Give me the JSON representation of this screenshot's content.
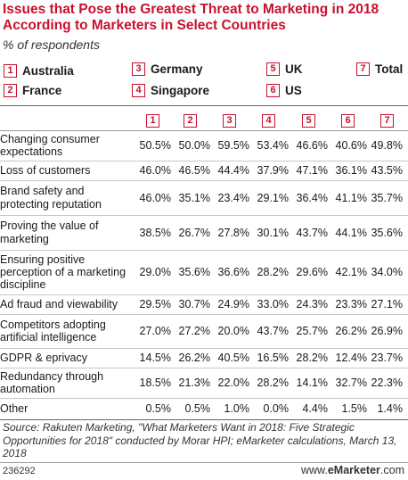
{
  "chart_data": {
    "type": "table",
    "title": "Issues that Pose the Greatest Threat to Marketing in 2018 According to Marketers in Select Countries",
    "subtitle": "% of respondents",
    "legend": [
      {
        "key": "1",
        "name": "Australia"
      },
      {
        "key": "2",
        "name": "France"
      },
      {
        "key": "3",
        "name": "Germany"
      },
      {
        "key": "4",
        "name": "Singapore"
      },
      {
        "key": "5",
        "name": "UK"
      },
      {
        "key": "6",
        "name": "US"
      },
      {
        "key": "7",
        "name": "Total"
      }
    ],
    "columns": [
      "1",
      "2",
      "3",
      "4",
      "5",
      "6",
      "7"
    ],
    "rows": [
      {
        "label": "Changing consumer expectations",
        "values": [
          "50.5%",
          "50.0%",
          "59.5%",
          "53.4%",
          "46.6%",
          "40.6%",
          "49.8%"
        ]
      },
      {
        "label": "Loss of customers",
        "values": [
          "46.0%",
          "46.5%",
          "44.4%",
          "37.9%",
          "47.1%",
          "36.1%",
          "43.5%"
        ]
      },
      {
        "label": "Brand safety and protecting reputation",
        "values": [
          "46.0%",
          "35.1%",
          "23.4%",
          "29.1%",
          "36.4%",
          "41.1%",
          "35.7%"
        ]
      },
      {
        "label": "Proving the value of marketing",
        "values": [
          "38.5%",
          "26.7%",
          "27.8%",
          "30.1%",
          "43.7%",
          "44.1%",
          "35.6%"
        ]
      },
      {
        "label": "Ensuring positive perception of a marketing discipline",
        "values": [
          "29.0%",
          "35.6%",
          "36.6%",
          "28.2%",
          "29.6%",
          "42.1%",
          "34.0%"
        ]
      },
      {
        "label": "Ad fraud and viewability",
        "values": [
          "29.5%",
          "30.7%",
          "24.9%",
          "33.0%",
          "24.3%",
          "23.3%",
          "27.1%"
        ]
      },
      {
        "label": "Competitors adopting artificial intelligence",
        "values": [
          "27.0%",
          "27.2%",
          "20.0%",
          "43.7%",
          "25.7%",
          "26.2%",
          "26.9%"
        ]
      },
      {
        "label": "GDPR & eprivacy",
        "values": [
          "14.5%",
          "26.2%",
          "40.5%",
          "16.5%",
          "28.2%",
          "12.4%",
          "23.7%"
        ]
      },
      {
        "label": "Redundancy through automation",
        "values": [
          "18.5%",
          "21.3%",
          "22.0%",
          "28.2%",
          "14.1%",
          "32.7%",
          "22.3%"
        ]
      },
      {
        "label": "Other",
        "values": [
          "0.5%",
          "0.5%",
          "1.0%",
          "0.0%",
          "4.4%",
          "1.5%",
          "1.4%"
        ]
      }
    ],
    "source": "Source: Rakuten Marketing, \"What Marketers Want in 2018: Five Strategic Opportunities for 2018\" conducted by Morar HPI; eMarketer calculations, March 13, 2018",
    "chart_id": "236292",
    "brand_prefix": "www.",
    "brand_name": "eMarketer",
    "brand_suffix": ".com"
  },
  "colors": {
    "accent": "#c8102e",
    "text": "#1a1a1a"
  }
}
